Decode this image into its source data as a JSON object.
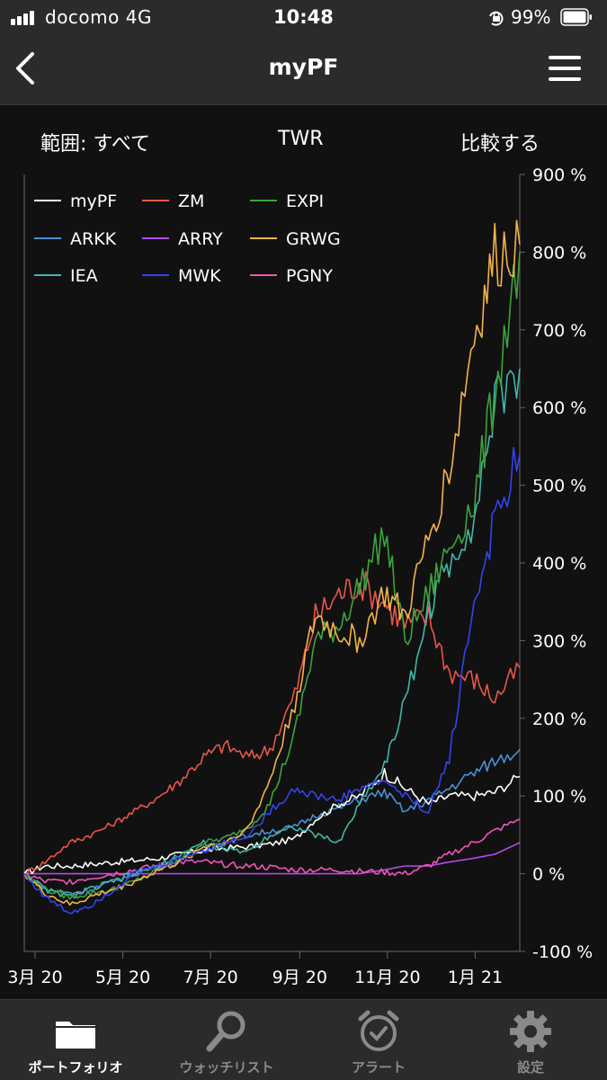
{
  "status_bar": {
    "carrier": "docomo   4G",
    "time": "10:48",
    "battery": "99%"
  },
  "nav": {
    "title": "myPF"
  },
  "toolbar": {
    "range": "範囲: すべて",
    "metric": "TWR",
    "compare": "比較する"
  },
  "chart_data": {
    "type": "line",
    "y_unit": "%",
    "ylim": [
      -100,
      900
    ],
    "y_ticks": [
      "900 %",
      "800 %",
      "700 %",
      "600 %",
      "500 %",
      "400 %",
      "300 %",
      "200 %",
      "100 %",
      "0 %",
      "-100 %"
    ],
    "x_ticks": [
      "3月 20",
      "5月 20",
      "7月 20",
      "9月 20",
      "11月 20",
      "1月 21"
    ],
    "x": [
      "2020-03-01",
      "2020-03-15",
      "2020-04-01",
      "2020-04-15",
      "2020-05-01",
      "2020-05-15",
      "2020-06-01",
      "2020-06-15",
      "2020-07-01",
      "2020-07-15",
      "2020-08-01",
      "2020-08-15",
      "2020-09-01",
      "2020-09-15",
      "2020-10-01",
      "2020-10-15",
      "2020-11-01",
      "2020-11-15",
      "2020-12-01",
      "2020-12-15",
      "2021-01-01",
      "2021-01-15",
      "2021-02-01"
    ],
    "legend_placement": "top-left",
    "grid": false,
    "series": [
      {
        "name": "myPF",
        "color": "#ffffff",
        "values": [
          0,
          10,
          10,
          12,
          15,
          17,
          20,
          25,
          30,
          33,
          35,
          38,
          45,
          70,
          90,
          100,
          130,
          110,
          90,
          100,
          100,
          105,
          125
        ]
      },
      {
        "name": "ZM",
        "color": "#e8564a",
        "values": [
          0,
          15,
          40,
          50,
          65,
          80,
          100,
          120,
          150,
          165,
          150,
          160,
          230,
          330,
          360,
          375,
          350,
          320,
          330,
          260,
          250,
          225,
          265
        ]
      },
      {
        "name": "EXPI",
        "color": "#3da33d",
        "values": [
          0,
          -20,
          -30,
          -25,
          -20,
          -10,
          5,
          20,
          40,
          45,
          60,
          90,
          180,
          300,
          320,
          370,
          440,
          300,
          360,
          420,
          480,
          620,
          800
        ]
      },
      {
        "name": "ARKK",
        "color": "#4a90d9",
        "values": [
          0,
          -20,
          -25,
          -20,
          -10,
          0,
          10,
          20,
          30,
          40,
          50,
          55,
          60,
          75,
          85,
          95,
          105,
          80,
          95,
          110,
          130,
          145,
          160
        ]
      },
      {
        "name": "ARRY",
        "color": "#b64ae8",
        "values": [
          0,
          0,
          0,
          0,
          0,
          0,
          0,
          0,
          0,
          0,
          0,
          0,
          0,
          0,
          0,
          0,
          5,
          10,
          10,
          15,
          20,
          25,
          40
        ]
      },
      {
        "name": "GRWG",
        "color": "#f5b24a",
        "values": [
          0,
          -25,
          -40,
          -30,
          -20,
          -10,
          5,
          15,
          35,
          40,
          60,
          120,
          220,
          330,
          310,
          300,
          360,
          330,
          430,
          520,
          690,
          790,
          810
        ]
      },
      {
        "name": "IEA",
        "color": "#40b8a8",
        "values": [
          0,
          -20,
          -30,
          -20,
          -10,
          0,
          10,
          25,
          40,
          30,
          30,
          50,
          60,
          50,
          40,
          90,
          140,
          220,
          340,
          400,
          460,
          600,
          650
        ]
      },
      {
        "name": "MWK",
        "color": "#3344ee",
        "values": [
          0,
          -30,
          -50,
          -40,
          -20,
          0,
          10,
          20,
          30,
          40,
          50,
          80,
          110,
          100,
          95,
          110,
          120,
          100,
          80,
          150,
          350,
          450,
          540
        ]
      },
      {
        "name": "PGNY",
        "color": "#ee55bb",
        "values": [
          0,
          -10,
          -10,
          -5,
          0,
          5,
          10,
          15,
          15,
          12,
          10,
          8,
          5,
          5,
          5,
          3,
          2,
          0,
          10,
          25,
          40,
          55,
          70
        ]
      }
    ]
  },
  "tabs": [
    {
      "label": "ポートフォリオ",
      "icon": "folder-icon",
      "active": true
    },
    {
      "label": "ウォッチリスト",
      "icon": "magnifier-icon",
      "active": false
    },
    {
      "label": "アラート",
      "icon": "alarm-clock-icon",
      "active": false
    },
    {
      "label": "設定",
      "icon": "gear-icon",
      "active": false
    }
  ]
}
